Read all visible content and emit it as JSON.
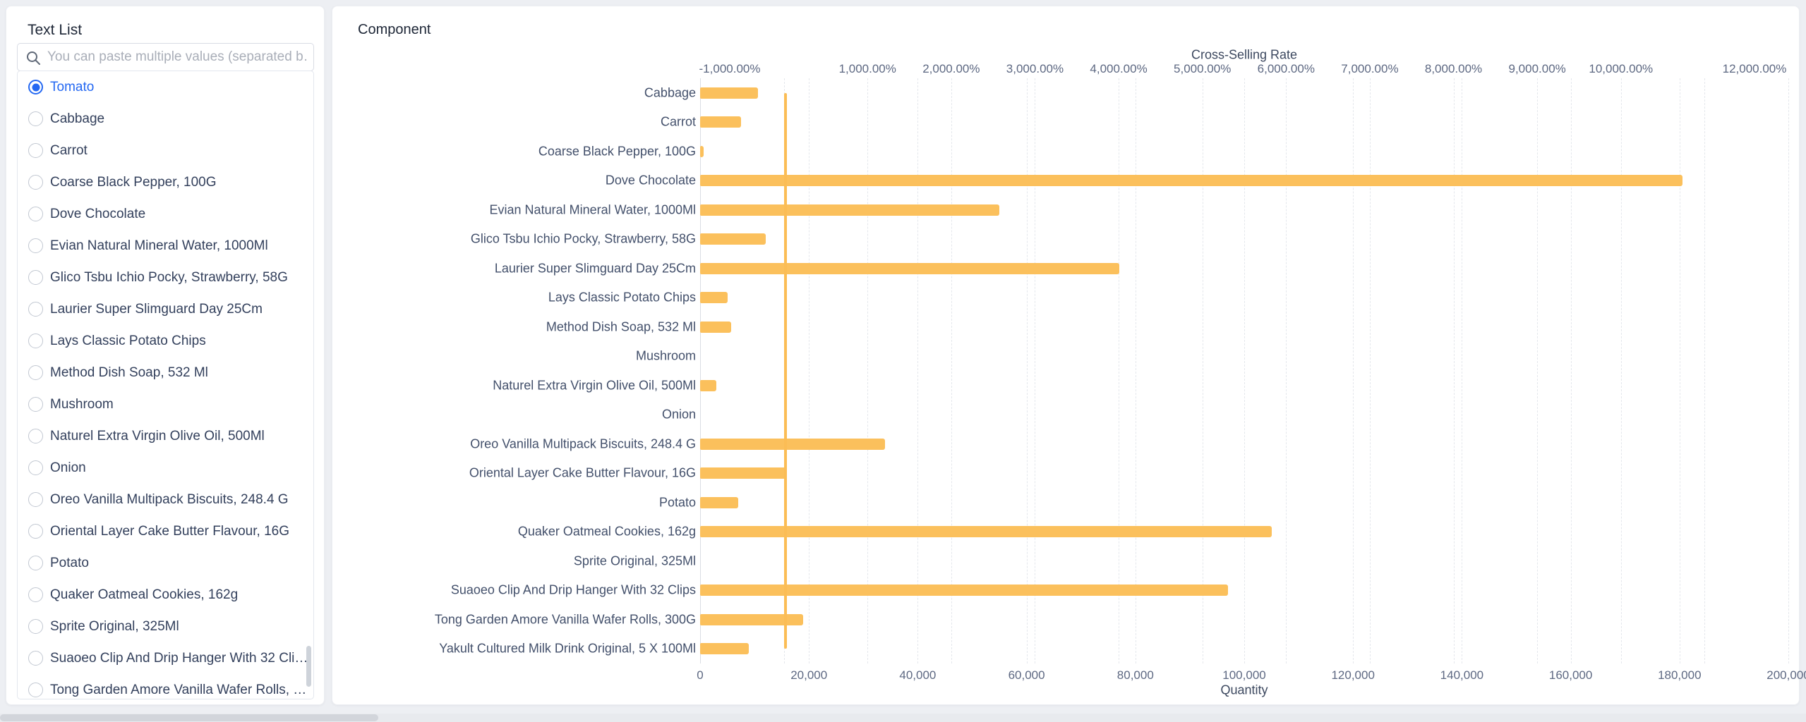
{
  "sidebar": {
    "title": "Text List",
    "search": {
      "placeholder": "You can paste multiple values (separated b…"
    },
    "items": [
      {
        "label": "Tomato",
        "selected": true
      },
      {
        "label": "Cabbage",
        "selected": false
      },
      {
        "label": "Carrot",
        "selected": false
      },
      {
        "label": "Coarse Black Pepper, 100G",
        "selected": false
      },
      {
        "label": "Dove Chocolate",
        "selected": false
      },
      {
        "label": "Evian Natural Mineral Water, 1000Ml",
        "selected": false
      },
      {
        "label": "Glico Tsbu Ichio Pocky, Strawberry, 58G",
        "selected": false
      },
      {
        "label": "Laurier Super Slimguard Day 25Cm",
        "selected": false
      },
      {
        "label": "Lays Classic Potato Chips",
        "selected": false
      },
      {
        "label": "Method Dish Soap,  532 Ml",
        "selected": false
      },
      {
        "label": "Mushroom",
        "selected": false
      },
      {
        "label": "Naturel Extra Virgin Olive Oil, 500Ml",
        "selected": false
      },
      {
        "label": "Onion",
        "selected": false
      },
      {
        "label": "Oreo Vanilla Multipack Biscuits, 248.4 G",
        "selected": false
      },
      {
        "label": "Oriental Layer Cake Butter Flavour, 16G",
        "selected": false
      },
      {
        "label": "Potato",
        "selected": false
      },
      {
        "label": "Quaker Oatmeal Cookies, 162g",
        "selected": false
      },
      {
        "label": "Sprite Original, 325Ml",
        "selected": false
      },
      {
        "label": "Suaoeo Clip And Drip Hanger With 32 Clips",
        "selected": false
      },
      {
        "label": "Tong Garden Amore Vanilla Wafer Rolls, 300G",
        "selected": false
      }
    ],
    "accent_color": "#2468f2"
  },
  "panel": {
    "title": "Component"
  },
  "chart_data": {
    "type": "bar",
    "orientation": "horizontal",
    "categories": [
      "Cabbage",
      "Carrot",
      "Coarse Black Pepper, 100G",
      "Dove Chocolate",
      "Evian Natural Mineral Water, 1000Ml",
      "Glico Tsbu Ichio Pocky, Strawberry, 58G",
      "Laurier Super Slimguard Day 25Cm",
      "Lays Classic Potato Chips",
      "Method Dish Soap,  532 Ml",
      "Mushroom",
      "Naturel Extra Virgin Olive Oil, 500Ml",
      "Onion",
      "Oreo Vanilla Multipack Biscuits, 248.4 G",
      "Oriental Layer Cake Butter Flavour, 16G",
      "Potato",
      "Quaker Oatmeal Cookies, 162g",
      "Sprite Original, 325Ml",
      "Suaoeo Clip And Drip Hanger With 32 Clips",
      "Tong Garden Amore Vanilla Wafer Rolls, 300G",
      "Yakult Cultured Milk Drink Original, 5 X 100Ml"
    ],
    "series": [
      {
        "name": "Quantity",
        "type": "bar",
        "axis": "bottom",
        "color": "#fbc05c",
        "values": [
          10600,
          7500,
          700,
          180500,
          55000,
          12000,
          77000,
          5000,
          5700,
          0,
          3000,
          0,
          34000,
          16000,
          7000,
          105000,
          0,
          97000,
          19000,
          9000
        ]
      },
      {
        "name": "Cross-Selling Rate",
        "type": "line",
        "axis": "top",
        "color": "#fbbd55",
        "constant_value_pct": 17
      }
    ],
    "top_axis": {
      "title": "Cross-Selling Rate",
      "min_pct": -1000,
      "max_pct": 12000,
      "tick_values_pct": [
        -1000,
        1000,
        2000,
        3000,
        4000,
        5000,
        6000,
        7000,
        8000,
        9000,
        10000,
        12000
      ],
      "tick_labels": [
        "-1,000.00%",
        "1,000.00%",
        "2,000.00%",
        "3,000.00%",
        "4,000.00%",
        "5,000.00%",
        "6,000.00%",
        "7,000.00%",
        "8,000.00%",
        "9,000.00%",
        "10,000.00%",
        "12,000.00%"
      ],
      "gridline_step_pct": 1000
    },
    "bottom_axis": {
      "title": "Quantity",
      "min": 0,
      "max": 200000,
      "tick_values": [
        0,
        20000,
        40000,
        60000,
        80000,
        100000,
        120000,
        140000,
        160000,
        180000,
        200000
      ],
      "tick_labels": [
        "0",
        "20,000",
        "40,000",
        "60,000",
        "80,000",
        "100,000",
        "120,000",
        "140,000",
        "160,000",
        "180,000",
        "200,000"
      ]
    },
    "grid": {
      "dashed": true,
      "color": "#e4e7ec"
    },
    "legend": "none"
  }
}
